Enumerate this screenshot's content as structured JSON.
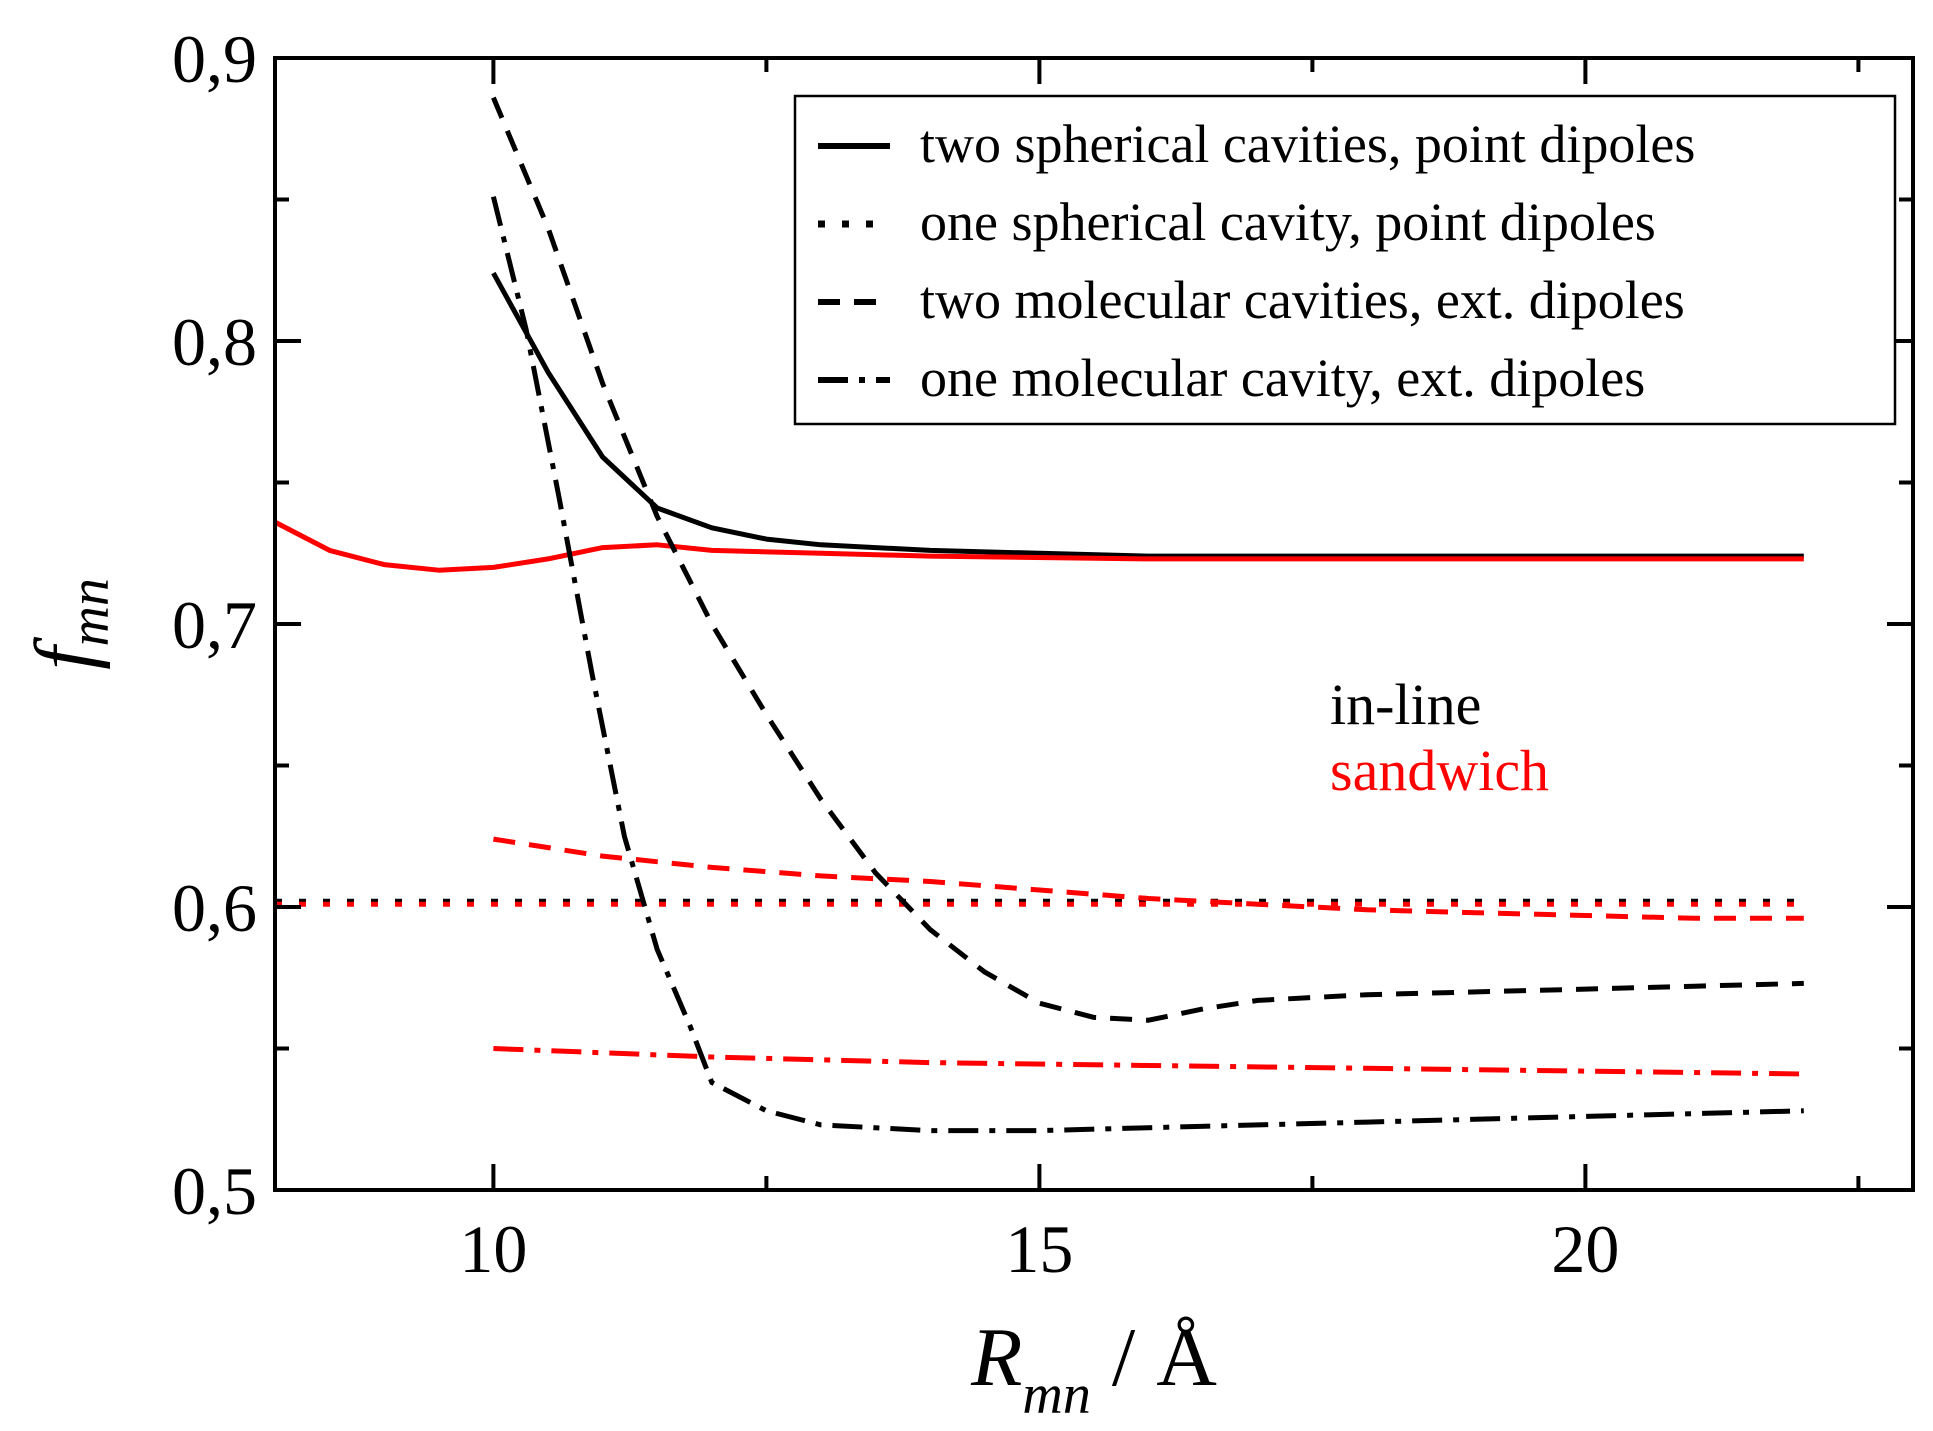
{
  "chart_data": {
    "type": "line",
    "title": "",
    "xlabel": {
      "main": "R",
      "subscript": "mn",
      "suffix": " / Å"
    },
    "ylabel": {
      "main": "f",
      "subscript": "mn"
    },
    "xlim": [
      8,
      23
    ],
    "ylim": [
      0.5,
      0.9
    ],
    "x_ticks": [
      10,
      15,
      20
    ],
    "x_tick_labels": [
      "10",
      "15",
      "20"
    ],
    "x_minor_ticks": [
      12.5,
      17.5,
      22.5
    ],
    "y_ticks": [
      0.5,
      0.6,
      0.7,
      0.8,
      0.9
    ],
    "y_tick_labels": [
      "0,5",
      "0,6",
      "0,7",
      "0,8",
      "0,9"
    ],
    "y_minor_ticks": [
      0.55,
      0.65,
      0.75,
      0.85
    ],
    "grid": false,
    "legend": {
      "placement": "top-right",
      "entries": [
        {
          "label": "two spherical cavities, point dipoles",
          "style": "solid"
        },
        {
          "label": "one spherical cavity, point dipoles",
          "style": "dotted"
        },
        {
          "label": "two molecular cavities, ext. dipoles",
          "style": "dashed"
        },
        {
          "label": "one molecular cavity, ext. dipoles",
          "style": "dashdot"
        }
      ]
    },
    "annotations": [
      {
        "text": "in-line",
        "color": "#000000"
      },
      {
        "text": "sandwich",
        "color": "#ff0000"
      }
    ],
    "colors": {
      "in_line": "#000000",
      "sandwich": "#ff0000"
    },
    "series": [
      {
        "name": "in-line, two spherical cavities, point dipoles",
        "style": "solid",
        "color": "#000000",
        "x": [
          10,
          10.5,
          11,
          11.5,
          12,
          12.5,
          13,
          14,
          15,
          16,
          18,
          20,
          22
        ],
        "y": [
          0.824,
          0.789,
          0.759,
          0.741,
          0.734,
          0.73,
          0.728,
          0.726,
          0.725,
          0.724,
          0.724,
          0.724,
          0.724
        ]
      },
      {
        "name": "sandwich, two spherical cavities, point dipoles",
        "style": "solid",
        "color": "#ff0000",
        "x": [
          8,
          8.5,
          9,
          9.5,
          10,
          10.5,
          11,
          11.5,
          12,
          13,
          14,
          16,
          18,
          20,
          22
        ],
        "y": [
          0.736,
          0.726,
          0.721,
          0.719,
          0.72,
          0.723,
          0.727,
          0.728,
          0.726,
          0.725,
          0.724,
          0.723,
          0.723,
          0.723,
          0.723
        ]
      },
      {
        "name": "in-line, one spherical cavity, point dipoles",
        "style": "dotted",
        "color": "#000000",
        "x": [
          8,
          10,
          12,
          14,
          16,
          18,
          20,
          22
        ],
        "y": [
          0.602,
          0.602,
          0.602,
          0.602,
          0.602,
          0.602,
          0.602,
          0.602
        ]
      },
      {
        "name": "sandwich, one spherical cavity, point dipoles",
        "style": "dotted",
        "color": "#ff0000",
        "x": [
          8,
          10,
          12,
          14,
          16,
          18,
          20,
          22
        ],
        "y": [
          0.601,
          0.601,
          0.601,
          0.601,
          0.601,
          0.601,
          0.601,
          0.601
        ]
      },
      {
        "name": "in-line, two molecular cavities, ext. dipoles",
        "style": "dashed",
        "color": "#000000",
        "x": [
          10,
          10.5,
          11,
          11.5,
          12,
          12.5,
          13,
          13.5,
          14,
          14.5,
          15,
          15.5,
          16,
          16.5,
          17,
          18,
          19,
          20,
          21,
          22
        ],
        "y": [
          0.886,
          0.84,
          0.785,
          0.738,
          0.7,
          0.668,
          0.638,
          0.612,
          0.592,
          0.577,
          0.566,
          0.561,
          0.56,
          0.564,
          0.567,
          0.569,
          0.57,
          0.571,
          0.572,
          0.573
        ]
      },
      {
        "name": "sandwich, two molecular cavities, ext. dipoles",
        "style": "dashed",
        "color": "#ff0000",
        "x": [
          10,
          11,
          12,
          13,
          14,
          15,
          16,
          17,
          18,
          19,
          20,
          21,
          22
        ],
        "y": [
          0.624,
          0.618,
          0.614,
          0.611,
          0.609,
          0.606,
          0.603,
          0.601,
          0.599,
          0.598,
          0.597,
          0.596,
          0.596
        ]
      },
      {
        "name": "in-line, one molecular cavity, ext. dipoles",
        "style": "dashdot",
        "color": "#000000",
        "x": [
          10,
          10.3,
          10.6,
          10.9,
          11.2,
          11.5,
          11.8,
          12,
          12.5,
          13,
          14,
          15,
          16,
          18,
          20,
          22
        ],
        "y": [
          0.851,
          0.804,
          0.745,
          0.683,
          0.625,
          0.585,
          0.558,
          0.538,
          0.528,
          0.523,
          0.521,
          0.521,
          0.522,
          0.524,
          0.526,
          0.528
        ]
      },
      {
        "name": "sandwich, one molecular cavity, ext. dipoles",
        "style": "dashdot",
        "color": "#ff0000",
        "x": [
          10,
          12,
          14,
          16,
          18,
          20,
          22
        ],
        "y": [
          0.55,
          0.547,
          0.545,
          0.544,
          0.543,
          0.542,
          0.541
        ]
      }
    ]
  }
}
